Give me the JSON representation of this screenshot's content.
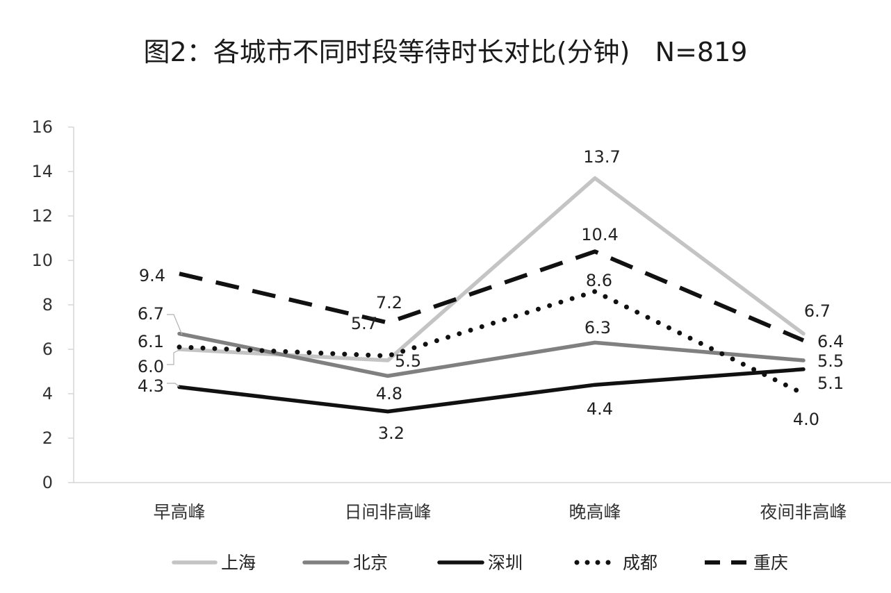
{
  "chart_data": {
    "type": "line",
    "title": "图2：各城市不同时段等待时长对比(分钟)",
    "subtitle": "N=819",
    "xlabel": "",
    "ylabel": "",
    "ylim": [
      0,
      16
    ],
    "yticks": [
      0,
      2,
      4,
      6,
      8,
      10,
      12,
      14,
      16
    ],
    "ytick_labels": [
      "0",
      "2",
      "4",
      "6",
      "8",
      "10",
      "12",
      "14",
      "16"
    ],
    "grid": false,
    "legend_position": "bottom",
    "categories": [
      "早高峰",
      "日间非高峰",
      "晚高峰",
      "夜间非高峰"
    ],
    "series": [
      {
        "name": "上海",
        "values": [
          6.0,
          5.5,
          13.7,
          6.7
        ],
        "labels": [
          "6.0",
          "5.5",
          "13.7",
          "6.7"
        ],
        "color": "#c4c4c4",
        "style": "solid"
      },
      {
        "name": "北京",
        "values": [
          6.7,
          4.8,
          6.3,
          5.5
        ],
        "labels": [
          "6.7",
          "4.8",
          "6.3",
          "5.5"
        ],
        "color": "#808080",
        "style": "solid"
      },
      {
        "name": "深圳",
        "values": [
          4.3,
          3.2,
          4.4,
          5.1
        ],
        "labels": [
          "4.3",
          "3.2",
          "4.4",
          "5.1"
        ],
        "color": "#111111",
        "style": "solid"
      },
      {
        "name": "成都",
        "values": [
          6.1,
          5.7,
          8.6,
          4.0
        ],
        "labels": [
          "6.1",
          "5.7",
          "8.6",
          "4.0"
        ],
        "color": "#111111",
        "style": "dotted"
      },
      {
        "name": "重庆",
        "values": [
          9.4,
          7.2,
          10.4,
          6.4
        ],
        "labels": [
          "9.4",
          "7.2",
          "10.4",
          "6.4"
        ],
        "color": "#111111",
        "style": "dashed"
      }
    ]
  }
}
